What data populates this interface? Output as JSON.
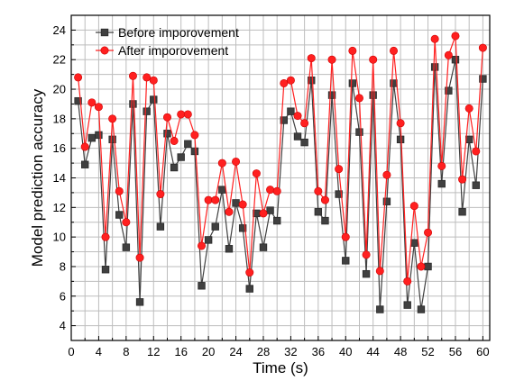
{
  "chart_data": {
    "type": "line",
    "xlabel": "Time (s)",
    "ylabel": "Model prediction accuracy",
    "xlim": [
      0,
      61
    ],
    "ylim": [
      3,
      25
    ],
    "xticks": [
      0,
      4,
      8,
      12,
      16,
      20,
      24,
      28,
      32,
      36,
      40,
      44,
      48,
      52,
      56,
      60
    ],
    "yticks": [
      4,
      6,
      8,
      10,
      12,
      14,
      16,
      18,
      20,
      22,
      24
    ],
    "grid": true,
    "legend_position": "top-left",
    "x": [
      1,
      2,
      3,
      4,
      5,
      6,
      7,
      8,
      9,
      10,
      11,
      12,
      13,
      14,
      15,
      16,
      17,
      18,
      19,
      20,
      21,
      22,
      23,
      24,
      25,
      26,
      27,
      28,
      29,
      30,
      31,
      32,
      33,
      34,
      35,
      36,
      37,
      38,
      39,
      40,
      41,
      42,
      43,
      44,
      45,
      46,
      47,
      48,
      49,
      50,
      51,
      52,
      53,
      54,
      55,
      56,
      57,
      58,
      59,
      60
    ],
    "series": [
      {
        "name": "Before imporovement",
        "color": "#404040",
        "marker": "square",
        "values": [
          19.2,
          14.9,
          16.7,
          16.9,
          7.8,
          16.6,
          11.5,
          9.3,
          19.0,
          5.6,
          18.5,
          19.3,
          10.7,
          17.0,
          14.7,
          15.4,
          16.3,
          15.8,
          6.7,
          9.8,
          10.7,
          13.2,
          9.2,
          12.3,
          10.6,
          6.5,
          11.6,
          9.3,
          11.8,
          11.1,
          17.9,
          18.5,
          16.8,
          16.4,
          20.6,
          11.7,
          11.1,
          19.6,
          12.9,
          8.4,
          20.4,
          17.1,
          7.5,
          19.6,
          5.1,
          12.4,
          20.4,
          16.6,
          5.4,
          9.6,
          5.1,
          8.0,
          21.5,
          13.6,
          19.9,
          22.0,
          11.7,
          16.6,
          13.5,
          20.7
        ]
      },
      {
        "name": "After imporovement",
        "color": "#ff2020",
        "marker": "circle",
        "values": [
          20.8,
          16.1,
          19.1,
          18.8,
          10.0,
          18.0,
          13.1,
          11.0,
          20.9,
          8.6,
          20.8,
          20.6,
          12.9,
          18.1,
          16.5,
          18.3,
          18.3,
          16.9,
          9.4,
          12.5,
          12.5,
          15.0,
          11.7,
          15.1,
          12.2,
          7.6,
          14.3,
          11.6,
          13.2,
          13.1,
          20.4,
          20.6,
          18.2,
          17.7,
          22.1,
          13.1,
          12.5,
          22.0,
          14.6,
          10.0,
          22.6,
          19.4,
          8.8,
          22.0,
          7.7,
          14.2,
          22.6,
          17.7,
          7.0,
          12.1,
          8.0,
          10.3,
          23.4,
          14.8,
          22.3,
          23.6,
          13.9,
          18.7,
          15.8,
          22.8
        ]
      }
    ]
  }
}
